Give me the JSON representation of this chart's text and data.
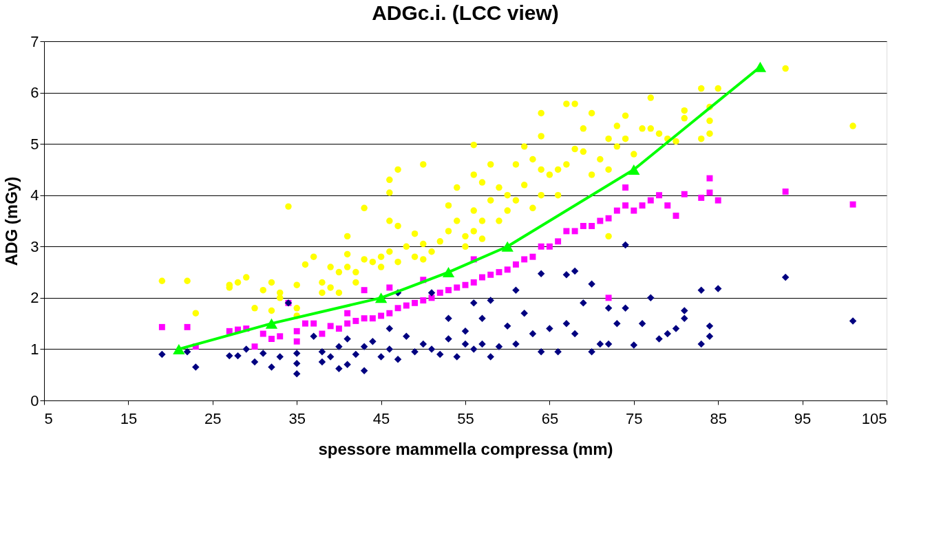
{
  "chart_data": {
    "type": "scatter",
    "title": "ADGc.i. (LCC view)",
    "xlabel": "spessore mammella compressa (mm)",
    "ylabel": "ADG (mGy)",
    "xlim": [
      5,
      105
    ],
    "xticks": [
      5,
      15,
      25,
      35,
      45,
      55,
      65,
      75,
      85,
      95,
      105
    ],
    "ylim": [
      0,
      7
    ],
    "yticks": [
      0,
      1,
      2,
      3,
      4,
      5,
      6,
      7
    ],
    "grid": "y",
    "series": [
      {
        "marker": "circle",
        "color": "#ffff00",
        "x": [
          19,
          22,
          23,
          27,
          27,
          28,
          29,
          30,
          31,
          32,
          32,
          33,
          33,
          34,
          35,
          35,
          35,
          36,
          37,
          38,
          38,
          39,
          39,
          40,
          40,
          41,
          41,
          41,
          42,
          42,
          43,
          43,
          44,
          45,
          45,
          46,
          46,
          46,
          46,
          47,
          47,
          47,
          48,
          49,
          49,
          50,
          50,
          50,
          51,
          52,
          53,
          53,
          54,
          54,
          55,
          55,
          56,
          56,
          56,
          56,
          57,
          57,
          57,
          58,
          58,
          59,
          59,
          60,
          60,
          61,
          61,
          62,
          62,
          63,
          63,
          64,
          64,
          64,
          64,
          65,
          66,
          66,
          67,
          67,
          68,
          68,
          69,
          69,
          70,
          70,
          71,
          72,
          72,
          72,
          73,
          73,
          74,
          74,
          75,
          76,
          77,
          77,
          78,
          79,
          80,
          81,
          81,
          83,
          83,
          84,
          84,
          84,
          85,
          93,
          101
        ],
        "values": [
          2.33,
          2.33,
          1.7,
          2.2,
          2.25,
          2.3,
          2.4,
          1.8,
          2.15,
          2.3,
          1.75,
          2.1,
          2.0,
          3.78,
          1.8,
          1.65,
          2.25,
          2.65,
          2.8,
          2.3,
          2.1,
          2.6,
          2.2,
          2.5,
          2.1,
          3.2,
          2.85,
          2.6,
          2.5,
          2.3,
          3.75,
          2.75,
          2.7,
          2.8,
          2.6,
          4.3,
          4.05,
          3.5,
          2.9,
          4.5,
          3.4,
          2.7,
          3.0,
          3.25,
          2.8,
          4.6,
          3.05,
          2.75,
          2.9,
          3.1,
          3.8,
          3.3,
          4.15,
          3.5,
          3.2,
          3.0,
          4.98,
          4.4,
          3.7,
          3.3,
          4.25,
          3.5,
          3.15,
          4.6,
          3.9,
          4.15,
          3.5,
          4.0,
          3.7,
          4.6,
          3.9,
          4.95,
          4.2,
          4.7,
          3.75,
          5.6,
          5.15,
          4.5,
          4.0,
          4.4,
          4.5,
          4.0,
          5.78,
          4.6,
          5.78,
          4.9,
          5.3,
          4.85,
          5.6,
          4.4,
          4.7,
          5.1,
          4.5,
          3.2,
          5.35,
          4.95,
          5.55,
          5.1,
          4.8,
          5.3,
          5.9,
          5.3,
          5.2,
          5.1,
          5.05,
          5.65,
          5.5,
          6.08,
          5.1,
          5.72,
          5.45,
          5.2,
          6.08,
          6.47,
          5.35
        ]
      },
      {
        "marker": "square",
        "color": "#ff00ff",
        "x": [
          19,
          22,
          23,
          27,
          28,
          29,
          30,
          31,
          32,
          33,
          34,
          35,
          35,
          36,
          37,
          38,
          39,
          40,
          41,
          41,
          42,
          43,
          43,
          44,
          45,
          46,
          46,
          47,
          48,
          49,
          50,
          50,
          51,
          52,
          53,
          54,
          55,
          56,
          56,
          57,
          58,
          59,
          60,
          61,
          62,
          63,
          64,
          65,
          66,
          67,
          68,
          69,
          70,
          71,
          72,
          72,
          73,
          74,
          74,
          75,
          76,
          77,
          78,
          79,
          80,
          81,
          83,
          84,
          84,
          85,
          93,
          101
        ],
        "values": [
          1.43,
          1.43,
          1.05,
          1.35,
          1.38,
          1.4,
          1.05,
          1.3,
          1.2,
          1.25,
          1.9,
          1.35,
          1.15,
          1.5,
          1.5,
          1.3,
          1.45,
          1.4,
          1.7,
          1.5,
          1.55,
          2.15,
          1.6,
          1.6,
          1.65,
          2.2,
          1.7,
          1.8,
          1.85,
          1.9,
          2.35,
          1.95,
          2.0,
          2.1,
          2.15,
          2.2,
          2.25,
          2.75,
          2.3,
          2.4,
          2.45,
          2.5,
          2.55,
          2.65,
          2.75,
          2.8,
          3.0,
          3.0,
          3.1,
          3.3,
          3.3,
          3.4,
          3.4,
          3.5,
          3.55,
          2.0,
          3.7,
          4.15,
          3.8,
          3.7,
          3.8,
          3.9,
          4.0,
          3.8,
          3.6,
          4.02,
          3.95,
          4.33,
          4.05,
          3.9,
          4.07,
          3.82
        ]
      },
      {
        "marker": "diamond",
        "color": "#000080",
        "x": [
          19,
          22,
          23,
          27,
          28,
          29,
          30,
          31,
          32,
          33,
          34,
          35,
          35,
          35,
          37,
          38,
          38,
          39,
          40,
          40,
          41,
          41,
          42,
          43,
          43,
          44,
          45,
          46,
          46,
          47,
          47,
          48,
          49,
          50,
          51,
          51,
          52,
          53,
          53,
          54,
          55,
          55,
          56,
          56,
          57,
          57,
          58,
          58,
          59,
          60,
          61,
          61,
          62,
          63,
          64,
          64,
          65,
          66,
          67,
          67,
          68,
          68,
          69,
          70,
          70,
          71,
          72,
          72,
          73,
          74,
          74,
          75,
          76,
          77,
          78,
          79,
          80,
          81,
          81,
          83,
          83,
          84,
          84,
          85,
          93,
          101
        ],
        "values": [
          0.9,
          0.95,
          0.65,
          0.87,
          0.87,
          1.0,
          0.75,
          0.92,
          0.65,
          0.85,
          1.9,
          0.52,
          0.72,
          0.92,
          1.25,
          0.75,
          0.95,
          0.85,
          0.62,
          1.05,
          0.7,
          1.2,
          0.9,
          0.58,
          1.05,
          1.15,
          0.85,
          1.0,
          1.4,
          0.8,
          2.1,
          1.25,
          0.95,
          1.1,
          2.1,
          1.0,
          0.9,
          1.2,
          1.6,
          0.85,
          1.1,
          1.35,
          1.9,
          1.0,
          1.6,
          1.1,
          1.95,
          0.85,
          1.05,
          1.45,
          2.15,
          1.1,
          1.7,
          1.3,
          2.47,
          0.95,
          1.4,
          0.95,
          2.45,
          1.5,
          2.52,
          1.3,
          1.9,
          2.27,
          0.95,
          1.1,
          1.8,
          1.1,
          1.5,
          3.03,
          1.8,
          1.08,
          1.5,
          2.0,
          1.2,
          1.3,
          1.4,
          1.75,
          1.6,
          2.15,
          1.1,
          1.45,
          1.25,
          2.18,
          2.4,
          1.55
        ]
      },
      {
        "type": "line",
        "marker": "triangle",
        "line_style": "solid",
        "color": "#00ff00",
        "x": [
          21,
          32,
          45,
          53,
          60,
          75,
          90
        ],
        "values": [
          1.0,
          1.5,
          2.0,
          2.5,
          3.0,
          4.5,
          6.5
        ]
      }
    ]
  }
}
